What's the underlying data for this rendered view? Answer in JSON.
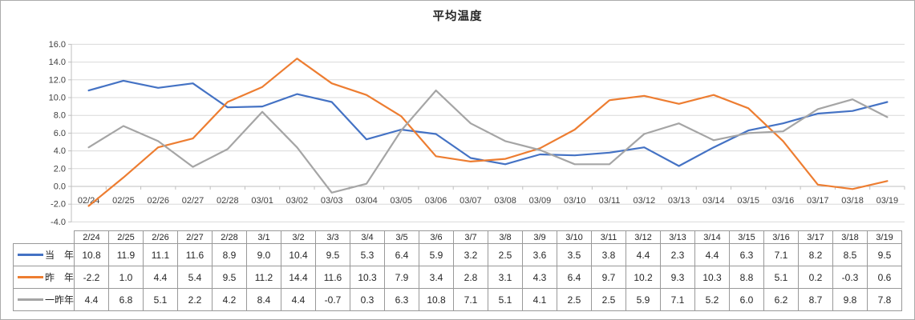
{
  "chart_data": {
    "type": "line",
    "title": "平均温度",
    "xlabel": "",
    "ylabel": "",
    "ylim": [
      -4.0,
      16.0
    ],
    "y_step": 2.0,
    "grid": true,
    "legend_position": "table-left",
    "y_tick_labels": [
      "16.0",
      "14.0",
      "12.0",
      "10.0",
      "8.0",
      "6.0",
      "4.0",
      "2.0",
      "0.0",
      "-2.0",
      "-4.0"
    ],
    "x_labels": [
      "02/24",
      "02/25",
      "02/26",
      "02/27",
      "02/28",
      "03/01",
      "03/02",
      "03/03",
      "03/04",
      "03/05",
      "03/06",
      "03/07",
      "03/08",
      "03/09",
      "03/10",
      "03/11",
      "03/12",
      "03/13",
      "03/14",
      "03/15",
      "03/16",
      "03/17",
      "03/18",
      "03/19"
    ],
    "table_columns": [
      "2/24",
      "2/25",
      "2/26",
      "2/27",
      "2/28",
      "3/1",
      "3/2",
      "3/3",
      "3/4",
      "3/5",
      "3/6",
      "3/7",
      "3/8",
      "3/9",
      "3/10",
      "3/11",
      "3/12",
      "3/13",
      "3/14",
      "3/15",
      "3/16",
      "3/17",
      "3/18",
      "3/19"
    ],
    "series": [
      {
        "name": "当　年",
        "color": "#4472C4",
        "values": [
          10.8,
          11.9,
          11.1,
          11.6,
          8.9,
          9.0,
          10.4,
          9.5,
          5.3,
          6.4,
          5.9,
          3.2,
          2.5,
          3.6,
          3.5,
          3.8,
          4.4,
          2.3,
          4.4,
          6.3,
          7.1,
          8.2,
          8.5,
          9.5
        ]
      },
      {
        "name": "昨　年",
        "color": "#ED7D31",
        "values": [
          -2.2,
          1.0,
          4.4,
          5.4,
          9.5,
          11.2,
          14.4,
          11.6,
          10.3,
          7.9,
          3.4,
          2.8,
          3.1,
          4.3,
          6.4,
          9.7,
          10.2,
          9.3,
          10.3,
          8.8,
          5.1,
          0.2,
          -0.3,
          0.6
        ]
      },
      {
        "name": "一昨年",
        "color": "#A5A5A5",
        "values": [
          4.4,
          6.8,
          5.1,
          2.2,
          4.2,
          8.4,
          4.4,
          -0.7,
          0.3,
          6.3,
          10.8,
          7.1,
          5.1,
          4.1,
          2.5,
          2.5,
          5.9,
          7.1,
          5.2,
          6.0,
          6.2,
          8.7,
          9.8,
          7.8
        ]
      }
    ]
  },
  "colors": {
    "gridline": "#d9d9d9",
    "axis_line": "#bfbfbf",
    "axis_text": "#404040",
    "table_border": "#999999",
    "table_text": "#262626",
    "frame_border": "#ababab"
  }
}
